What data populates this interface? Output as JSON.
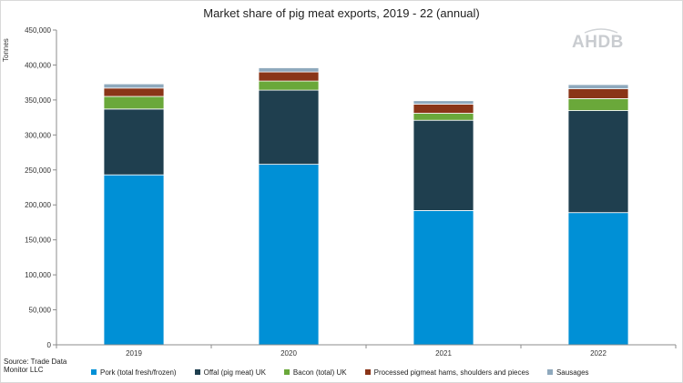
{
  "chart_data": {
    "type": "bar",
    "stacked": true,
    "title": "Market share of pig meat exports, 2019 - 22 (annual)",
    "xlabel": "",
    "ylabel": "Tonnes",
    "categories": [
      "2019",
      "2020",
      "2021",
      "2022"
    ],
    "ylim": [
      0,
      450000
    ],
    "yticks": [
      "0",
      "50,000",
      "100,000",
      "150,000",
      "200,000",
      "250,000",
      "300,000",
      "350,000",
      "400,000",
      "450,000"
    ],
    "grid": false,
    "legend_position": "bottom",
    "series": [
      {
        "name": "Pork (total fresh/frozen)",
        "color": "#0090d6",
        "values": [
          243000,
          258000,
          192000,
          189000
        ]
      },
      {
        "name": "Offal (pig meat) UK",
        "color": "#1f3f4f",
        "values": [
          94000,
          106000,
          129000,
          146000
        ]
      },
      {
        "name": "Bacon (total) UK",
        "color": "#6aa83a",
        "values": [
          18000,
          13000,
          10000,
          17000
        ]
      },
      {
        "name": "Processed pigmeat hams, shoulders and pieces",
        "color": "#8a3518",
        "values": [
          12000,
          13000,
          13000,
          14000
        ]
      },
      {
        "name": "Sausages",
        "color": "#8fa9bd",
        "values": [
          6000,
          6000,
          5000,
          6000
        ]
      }
    ]
  },
  "logo": {
    "text": "AHDB"
  },
  "source": {
    "line1": "Source: Trade Data",
    "line2": "Monitor LLC"
  }
}
